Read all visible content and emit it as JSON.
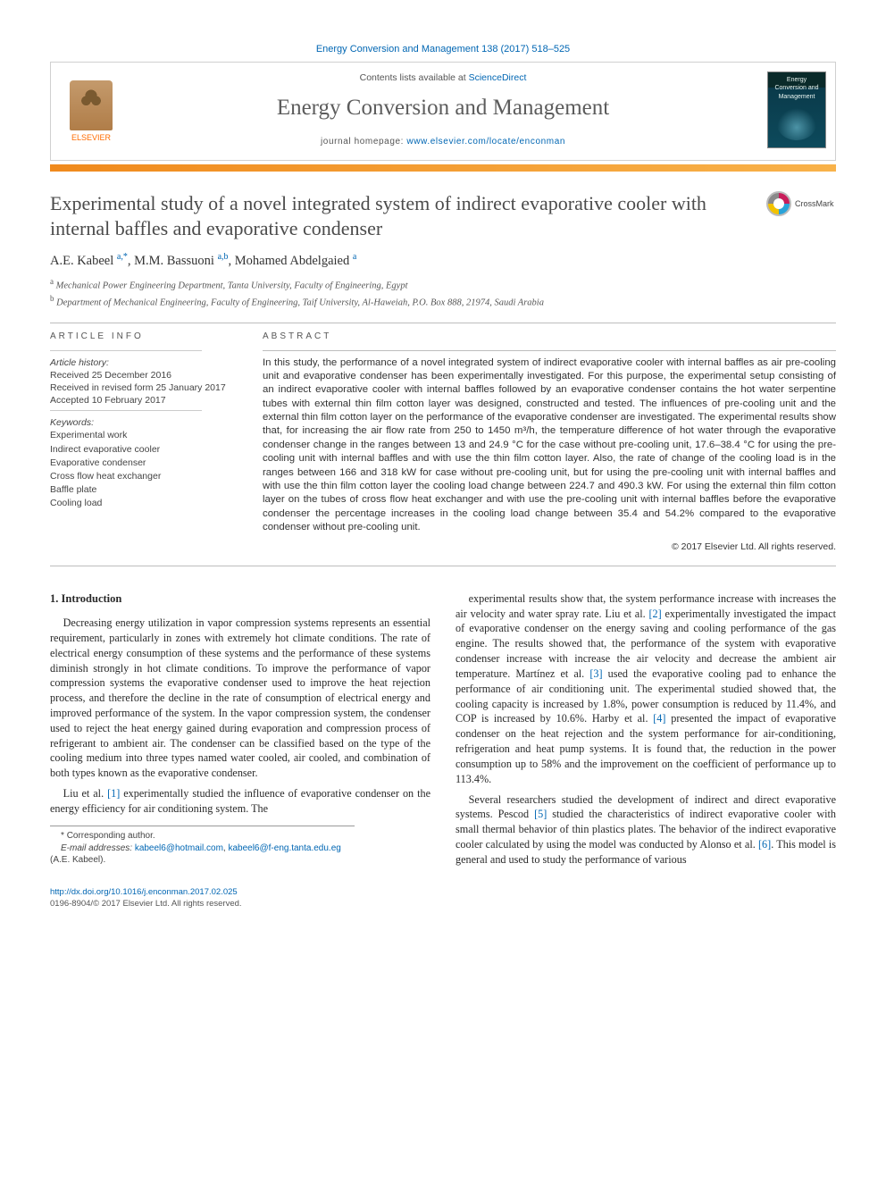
{
  "colors": {
    "link": "#0066b3",
    "text": "#333333",
    "rule_orange_start": "#f08a1d",
    "rule_orange_end": "#f8b24a",
    "title_gray": "#4b4b4b",
    "border_gray": "#d0d0d0"
  },
  "top_citation": "Energy Conversion and Management 138 (2017) 518–525",
  "headerbox": {
    "contents_prefix": "Contents lists available at ",
    "contents_link": "ScienceDirect",
    "journal_name": "Energy Conversion and Management",
    "homepage_prefix": "journal homepage: ",
    "homepage_url": "www.elsevier.com/locate/enconman",
    "elsevier_label": "ELSEVIER",
    "cover_text": "Energy Conversion and Management"
  },
  "crossmark_label": "CrossMark",
  "title": "Experimental study of a novel integrated system of indirect evaporative cooler with internal baffles and evaporative condenser",
  "authors_html": "A.E. Kabeel <sup>a,*</sup>, M.M. Bassuoni <sup>a,b</sup>, Mohamed Abdelgaied <sup>a</sup>",
  "affils": {
    "a": "Mechanical Power Engineering Department, Tanta University, Faculty of Engineering, Egypt",
    "b": "Department of Mechanical Engineering, Faculty of Engineering, Taif University, Al-Haweiah, P.O. Box 888, 21974, Saudi Arabia"
  },
  "article_info": {
    "heading": "ARTICLE INFO",
    "history_label": "Article history:",
    "received": "Received 25 December 2016",
    "revised": "Received in revised form 25 January 2017",
    "accepted": "Accepted 10 February 2017",
    "keywords_label": "Keywords:",
    "keywords": [
      "Experimental work",
      "Indirect evaporative cooler",
      "Evaporative condenser",
      "Cross flow heat exchanger",
      "Baffle plate",
      "Cooling load"
    ]
  },
  "abstract": {
    "heading": "ABSTRACT",
    "text": "In this study, the performance of a novel integrated system of indirect evaporative cooler with internal baffles as air pre-cooling unit and evaporative condenser has been experimentally investigated. For this purpose, the experimental setup consisting of an indirect evaporative cooler with internal baffles followed by an evaporative condenser contains the hot water serpentine tubes with external thin film cotton layer was designed, constructed and tested. The influences of pre-cooling unit and the external thin film cotton layer on the performance of the evaporative condenser are investigated. The experimental results show that, for increasing the air flow rate from 250 to 1450 m³/h, the temperature difference of hot water through the evaporative condenser change in the ranges between 13 and 24.9 °C for the case without pre-cooling unit, 17.6–38.4 °C for using the pre-cooling unit with internal baffles and with use the thin film cotton layer. Also, the rate of change of the cooling load is in the ranges between 166 and 318 kW for case without pre-cooling unit, but for using the pre-cooling unit with internal baffles and with use the thin film cotton layer the cooling load change between 224.7 and 490.3 kW. For using the external thin film cotton layer on the tubes of cross flow heat exchanger and with use the pre-cooling unit with internal baffles before the evaporative condenser the percentage increases in the cooling load change between 35.4 and 54.2% compared to the evaporative condenser without pre-cooling unit.",
    "copyright": "© 2017 Elsevier Ltd. All rights reserved."
  },
  "intro": {
    "heading": "1. Introduction",
    "p1": "Decreasing energy utilization in vapor compression systems represents an essential requirement, particularly in zones with extremely hot climate conditions. The rate of electrical energy consumption of these systems and the performance of these systems diminish strongly in hot climate conditions. To improve the performance of vapor compression systems the evaporative condenser used to improve the heat rejection process, and therefore the decline in the rate of consumption of electrical energy and improved performance of the system. In the vapor compression system, the condenser used to reject the heat energy gained during evaporation and compression process of refrigerant to ambient air. The condenser can be classified based on the type of the cooling medium into three types named water cooled, air cooled, and combination of both types known as the evaporative condenser.",
    "p2_pre": "Liu et al. ",
    "p2_ref1": "[1]",
    "p2_post": " experimentally studied the influence of evaporative condenser on the energy efficiency for air conditioning system. The",
    "p3_a": "experimental results show that, the system performance increase with increases the air velocity and water spray rate. Liu et al. ",
    "p3_ref2": "[2]",
    "p3_b": " experimentally investigated the impact of evaporative condenser on the energy saving and cooling performance of the gas engine. The results showed that, the performance of the system with evaporative condenser increase with increase the air velocity and decrease the ambient air temperature. Martínez et al. ",
    "p3_ref3": "[3]",
    "p3_c": " used the evaporative cooling pad to enhance the performance of air conditioning unit. The experimental studied showed that, the cooling capacity is increased by 1.8%, power consumption is reduced by 11.4%, and COP is increased by 10.6%. Harby et al. ",
    "p3_ref4": "[4]",
    "p3_d": " presented the impact of evaporative condenser on the heat rejection and the system performance for air-conditioning, refrigeration and heat pump systems. It is found that, the reduction in the power consumption up to 58% and the improvement on the coefficient of performance up to 113.4%.",
    "p4_a": "Several researchers studied the development of indirect and direct evaporative systems. Pescod ",
    "p4_ref5": "[5]",
    "p4_b": " studied the characteristics of indirect evaporative cooler with small thermal behavior of thin plastics plates. The behavior of the indirect evaporative cooler calculated by using the model was conducted by Alonso et al. ",
    "p4_ref6": "[6]",
    "p4_c": ". This model is general and used to study the performance of various"
  },
  "corresponding": {
    "star": "*",
    "label": "Corresponding author.",
    "emails_label": "E-mail addresses:",
    "email1": "kabeel6@hotmail.com",
    "email2": "kabeel6@f-eng.tanta.edu.eg",
    "tail": " (A.E. Kabeel)."
  },
  "footer": {
    "doi": "http://dx.doi.org/10.1016/j.enconman.2017.02.025",
    "issn_line": "0196-8904/© 2017 Elsevier Ltd. All rights reserved."
  }
}
